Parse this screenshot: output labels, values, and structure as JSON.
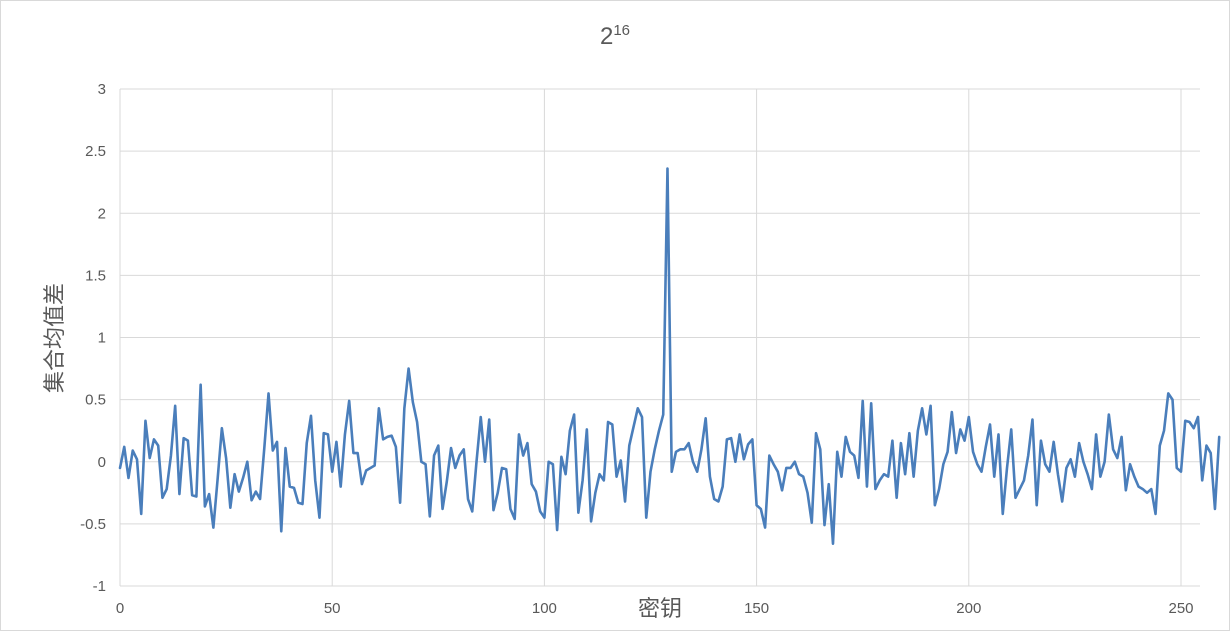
{
  "chart_data": {
    "type": "line",
    "title": "2",
    "title_superscript": "16",
    "xlabel": "密钥",
    "ylabel": "集合均值差",
    "xlim": [
      0,
      255
    ],
    "ylim": [
      -1,
      3
    ],
    "x_ticks": [
      0,
      50,
      100,
      150,
      200,
      250
    ],
    "y_ticks": [
      -1,
      -0.5,
      0,
      0.5,
      1,
      1.5,
      2,
      2.5,
      3
    ],
    "grid": true,
    "legend": "none",
    "colors": {
      "series": "#4a7ebb",
      "grid": "#d9d9d9",
      "text": "#595959"
    },
    "series": [
      {
        "values": [
          -0.05,
          0.12,
          -0.13,
          0.09,
          0.02,
          -0.42,
          0.33,
          0.03,
          0.18,
          0.13,
          -0.29,
          -0.22,
          0.05,
          0.45,
          -0.26,
          0.19,
          0.17,
          -0.27,
          -0.28,
          0.62,
          -0.36,
          -0.26,
          -0.53,
          -0.14,
          0.27,
          0.03,
          -0.37,
          -0.1,
          -0.24,
          -0.13,
          0.0,
          -0.31,
          -0.24,
          -0.3,
          0.11,
          0.55,
          0.09,
          0.16,
          -0.56,
          0.11,
          -0.2,
          -0.21,
          -0.33,
          -0.34,
          0.15,
          0.37,
          -0.15,
          -0.45,
          0.23,
          0.22,
          -0.08,
          0.16,
          -0.2,
          0.22,
          0.49,
          0.07,
          0.07,
          -0.18,
          -0.07,
          -0.05,
          -0.03,
          0.43,
          0.18,
          0.2,
          0.21,
          0.12,
          -0.33,
          0.43,
          0.75,
          0.48,
          0.32,
          0.0,
          -0.02,
          -0.44,
          0.05,
          0.13,
          -0.38,
          -0.16,
          0.11,
          -0.05,
          0.05,
          0.1,
          -0.3,
          -0.4,
          0.0,
          0.36,
          0.0,
          0.34,
          -0.39,
          -0.25,
          -0.05,
          -0.06,
          -0.38,
          -0.46,
          0.22,
          0.05,
          0.15,
          -0.18,
          -0.24,
          -0.4,
          -0.45,
          0.0,
          -0.02,
          -0.55,
          0.04,
          -0.1,
          0.25,
          0.38,
          -0.41,
          -0.15,
          0.26,
          -0.48,
          -0.25,
          -0.1,
          -0.15,
          0.32,
          0.3,
          -0.12,
          0.01,
          -0.32,
          0.13,
          0.28,
          0.43,
          0.36,
          -0.45,
          -0.08,
          0.1,
          0.25,
          0.38,
          2.36,
          -0.08,
          0.08,
          0.1,
          0.1,
          0.15,
          0.0,
          -0.08,
          0.1,
          0.35,
          -0.12,
          -0.3,
          -0.32,
          -0.2,
          0.18,
          0.19,
          0.0,
          0.22,
          0.02,
          0.14,
          0.18,
          -0.35,
          -0.38,
          -0.53,
          0.05,
          -0.02,
          -0.08,
          -0.23,
          -0.05,
          -0.05,
          0.0,
          -0.1,
          -0.12,
          -0.25,
          -0.49,
          0.23,
          0.1,
          -0.51,
          -0.18,
          -0.66,
          0.08,
          -0.12,
          0.2,
          0.08,
          0.05,
          -0.13,
          0.49,
          -0.2,
          0.47,
          -0.22,
          -0.15,
          -0.1,
          -0.12,
          0.17,
          -0.29,
          0.15,
          -0.1,
          0.23,
          -0.12,
          0.25,
          0.43,
          0.22,
          0.45,
          -0.35,
          -0.22,
          -0.02,
          0.08,
          0.4,
          0.07,
          0.26,
          0.17,
          0.36,
          0.08,
          -0.02,
          -0.08,
          0.12,
          0.3,
          -0.12,
          0.22,
          -0.42,
          -0.05,
          0.26,
          -0.29,
          -0.22,
          -0.15,
          0.05,
          0.34,
          -0.35,
          0.17,
          -0.02,
          -0.08,
          0.16,
          -0.1,
          -0.32,
          -0.05,
          0.02,
          -0.12,
          0.15,
          0.0,
          -0.1,
          -0.22,
          0.22,
          -0.12,
          0.0,
          0.38,
          0.1,
          0.03,
          0.2,
          -0.23,
          -0.02,
          -0.12,
          -0.2,
          -0.22,
          -0.25,
          -0.22,
          -0.42,
          0.13,
          0.25,
          0.55,
          0.5,
          -0.05,
          -0.08,
          0.33,
          0.32,
          0.27,
          0.36,
          -0.15,
          0.13,
          0.07,
          -0.38,
          0.2
        ]
      }
    ]
  }
}
